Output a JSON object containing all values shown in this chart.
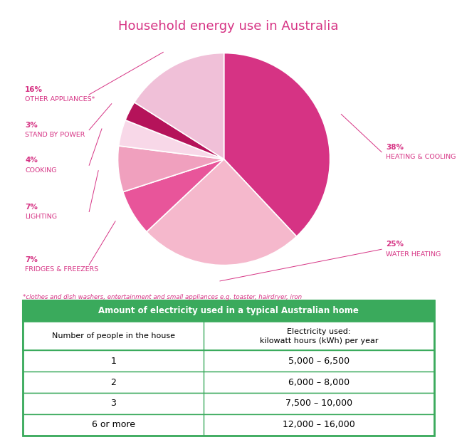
{
  "title": "Household energy use in Australia",
  "title_color": "#d63384",
  "slices": [
    {
      "label": "HEATING & COOLING",
      "pct": 38,
      "color": "#d63384",
      "side": "right"
    },
    {
      "label": "WATER HEATING",
      "pct": 25,
      "color": "#f5b8cc",
      "side": "right"
    },
    {
      "label": "FRIDGES & FREEZERS",
      "pct": 7,
      "color": "#e8559a",
      "side": "left"
    },
    {
      "label": "LIGHTING",
      "pct": 7,
      "color": "#f0a0be",
      "side": "left"
    },
    {
      "label": "COOKING",
      "pct": 4,
      "color": "#f8d0e0",
      "side": "left"
    },
    {
      "label": "STAND BY POWER",
      "pct": 3,
      "color": "#c2185b",
      "side": "left"
    },
    {
      "label": "OTHER APPLIANCES*",
      "pct": 16,
      "color": "#f0c0d8",
      "side": "left"
    }
  ],
  "footnote": "*clothes and dish washers, entertainment and small appliances e.g. toaster, hairdryer, iron",
  "table_header": "Amount of electricity used in a typical Australian home",
  "table_header_bg": "#3aaa5c",
  "table_header_color": "#ffffff",
  "table_col1_header": "Number of people in the house",
  "table_col2_header_line1": "Electricity used:",
  "table_col2_header_line2": "kilowatt hours (kWh) per year",
  "table_rows": [
    [
      "1",
      "5,000 – 6,500"
    ],
    [
      "2",
      "6,000 – 8,000"
    ],
    [
      "3",
      "7,500 – 10,000"
    ],
    [
      "6 or more",
      "12,000 – 16,000"
    ]
  ],
  "table_border_color": "#3aaa5c",
  "label_color": "#d63384",
  "bg_color": "#ffffff"
}
